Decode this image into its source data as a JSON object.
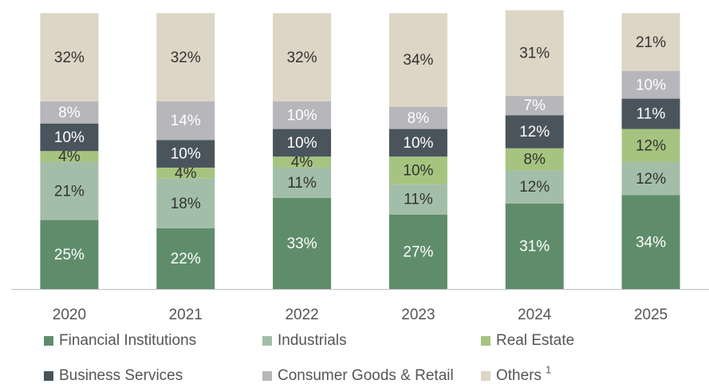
{
  "chart_data": {
    "type": "bar",
    "stacked": true,
    "categories": [
      "2020",
      "2021",
      "2022",
      "2023",
      "2024",
      "2025"
    ],
    "ylim": [
      0,
      101
    ],
    "series": [
      {
        "name": "Financial Institutions",
        "color": "#5f8d6b",
        "label_color": "#ffffff",
        "values": [
          25,
          22,
          33,
          27,
          31,
          34
        ],
        "value_labels": [
          "25%",
          "22%",
          "33%",
          "27%",
          "31%",
          "34%"
        ]
      },
      {
        "name": "Industrials",
        "color": "#a3bea8",
        "label_color": "#333333",
        "values": [
          21,
          18,
          11,
          11,
          12,
          12
        ],
        "value_labels": [
          "21%",
          "18%",
          "11%",
          "11%",
          "12%",
          "12%"
        ]
      },
      {
        "name": "Real Estate",
        "color": "#a6c47f",
        "label_color": "#333333",
        "values": [
          4,
          4,
          4,
          10,
          8,
          12
        ],
        "value_labels": [
          "4%",
          "4%",
          "4%",
          "10%",
          "8%",
          "12%"
        ]
      },
      {
        "name": "Business Services",
        "color": "#4a545c",
        "label_color": "#ffffff",
        "values": [
          10,
          10,
          10,
          10,
          12,
          11
        ],
        "value_labels": [
          "10%",
          "10%",
          "10%",
          "10%",
          "12%",
          "11%"
        ]
      },
      {
        "name": "Consumer Goods & Retail",
        "color": "#b6b6bb",
        "label_color": "#ffffff",
        "values": [
          8,
          14,
          10,
          8,
          7,
          10
        ],
        "value_labels": [
          "8%",
          "14%",
          "10%",
          "8%",
          "7%",
          "10%"
        ]
      },
      {
        "name": "Others",
        "note": "1",
        "color": "#ddd5c5",
        "label_color": "#333333",
        "values": [
          32,
          32,
          32,
          34,
          31,
          21
        ],
        "value_labels": [
          "32%",
          "32%",
          "32%",
          "34%",
          "31%",
          "21%"
        ]
      }
    ]
  }
}
